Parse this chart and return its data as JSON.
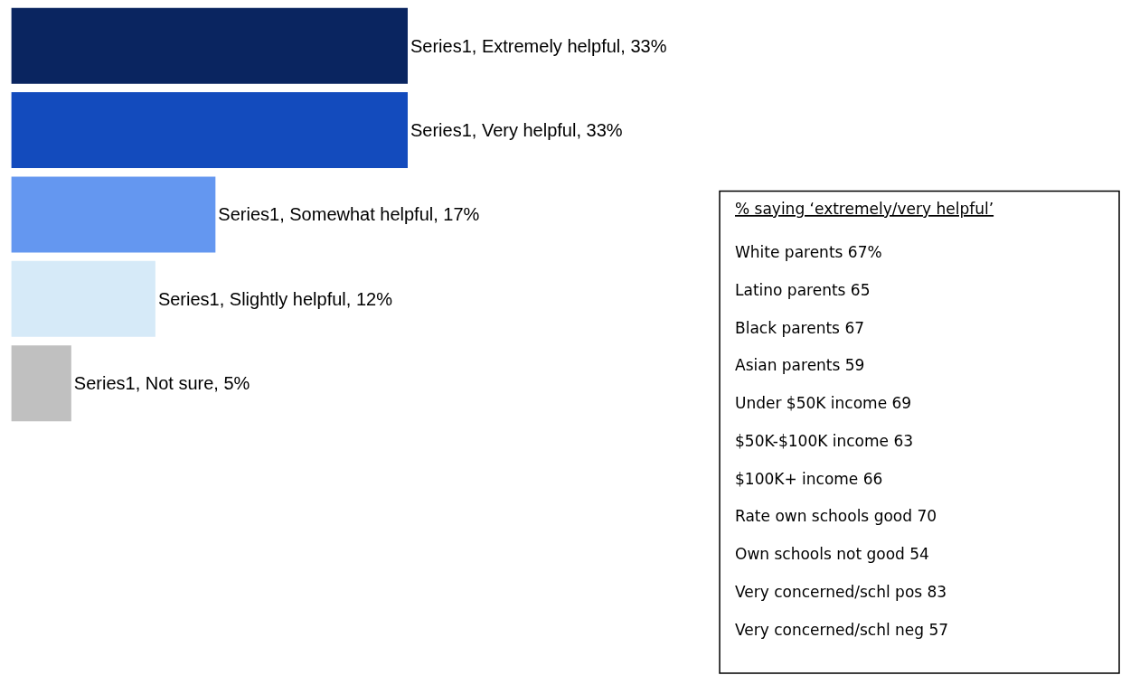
{
  "chart_data": [
    {
      "type": "bar",
      "orientation": "horizontal",
      "categories": [
        null,
        null,
        null,
        null,
        null
      ],
      "series": [
        {
          "values": [
            33,
            33,
            17,
            12,
            5
          ],
          "colors": [
            "#0a2560",
            "#134bbd",
            "#6497f0",
            "#d6eaf8",
            "#c0c0c0"
          ],
          "value_labels": [
            "Series1, Extremely helpful, 33%",
            "Series1, Very helpful, 33%",
            "Series1, Somewhat helpful, 17%",
            "Series1, Slightly helpful, 12%",
            "Series1, Not sure, 5%"
          ]
        }
      ],
      "tick_labels": false
    },
    {
      "type": "other",
      "title": "% saying ‘extremely/very helpful’",
      "annotations": [
        "White parents 67%",
        "Latino parents 65",
        "Black parents 67",
        "Asian parents 59",
        "Under $50K income 69",
        "$50K-$100K income 63",
        "$100K+ income 66",
        "Rate own schools good 70",
        "Own schools not good 54",
        "Very concerned/schl pos 83",
        "Very concerned/schl neg 57"
      ]
    }
  ]
}
